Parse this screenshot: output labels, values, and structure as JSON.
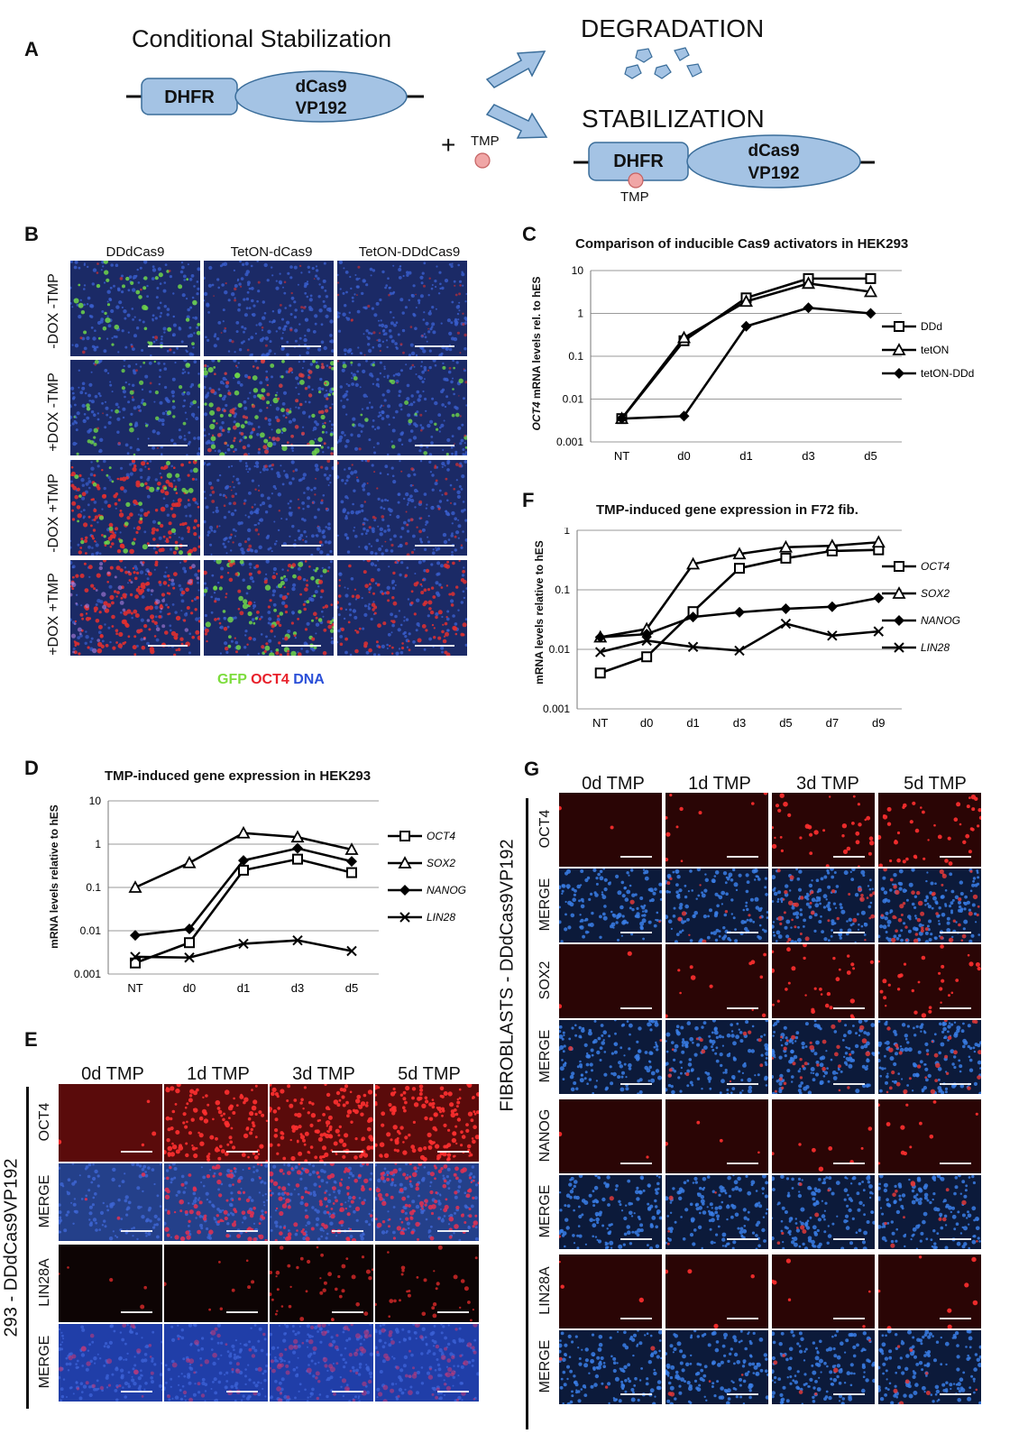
{
  "panelA": {
    "label": "A",
    "title": "Conditional Stabilization",
    "dhfr": "DHFR",
    "dcas9": "dCas9",
    "vp192": "VP192",
    "plus": "+",
    "tmp": "TMP",
    "degradation": "DEGRADATION",
    "stabilization": "STABILIZATION",
    "tmp_bound": "TMP"
  },
  "panelB": {
    "label": "B",
    "columns": [
      "DDdCas9",
      "TetON-dCas9",
      "TetON-DDdCas9"
    ],
    "rows": [
      "-DOX -TMP",
      "+DOX -TMP",
      "-DOX +TMP",
      "+DOX +TMP"
    ],
    "legend": {
      "gfp": "GFP",
      "oct4": "OCT4",
      "dna": "DNA"
    },
    "colors": {
      "gfp": "#7cdc3c",
      "oct4": "#e8202a",
      "dna": "#2a4fd8"
    }
  },
  "panelC": {
    "label": "C",
    "chart_data": {
      "type": "line",
      "title": "Comparison of inducible Cas9 activators in HEK293",
      "ylabel": "OCT4 mRNA levels rel. to hES",
      "ylabel_italic_part": "OCT4",
      "ylabel_rest": " mRNA levels rel. to hES",
      "yscale": "log",
      "ylim": [
        0.001,
        10
      ],
      "yticks": [
        "10",
        "1",
        "0.1",
        "0.01",
        "0.001"
      ],
      "categories": [
        "NT",
        "d0",
        "d1",
        "d3",
        "d5"
      ],
      "legend_position": "right",
      "series": [
        {
          "name": "DDd",
          "marker": "square",
          "values": [
            0.0035,
            0.23,
            2.3,
            6.5,
            6.5
          ]
        },
        {
          "name": "tetON",
          "marker": "triangle",
          "values": [
            0.0035,
            0.27,
            1.9,
            5.0,
            3.2
          ]
        },
        {
          "name": "tetON-DDd",
          "marker": "diamond",
          "values": [
            0.0035,
            0.004,
            0.5,
            1.35,
            1.0
          ]
        }
      ]
    }
  },
  "panelD": {
    "label": "D",
    "chart_data": {
      "type": "line",
      "title": "TMP-induced gene expression in HEK293",
      "ylabel": "mRNA levels relative to hES",
      "yscale": "log",
      "ylim": [
        0.001,
        10
      ],
      "yticks": [
        "10",
        "1",
        "0.1",
        "0.01",
        "0.001"
      ],
      "categories": [
        "NT",
        "d0",
        "d1",
        "d3",
        "d5"
      ],
      "legend_position": "right",
      "series": [
        {
          "name": "OCT4",
          "marker": "square",
          "values": [
            0.0018,
            0.0053,
            0.25,
            0.45,
            0.22
          ]
        },
        {
          "name": "SOX2",
          "marker": "triangle",
          "values": [
            0.1,
            0.37,
            1.8,
            1.45,
            0.75
          ]
        },
        {
          "name": "NANOG",
          "marker": "diamond",
          "values": [
            0.0078,
            0.011,
            0.42,
            0.8,
            0.4
          ]
        },
        {
          "name": "LIN28",
          "marker": "cross",
          "values": [
            0.0025,
            0.0024,
            0.005,
            0.006,
            0.0034
          ]
        }
      ]
    }
  },
  "panelE": {
    "label": "E",
    "columns": [
      "0d TMP",
      "1d TMP",
      "3d TMP",
      "5d TMP"
    ],
    "rows": [
      "OCT4",
      "MERGE",
      "LIN28A",
      "MERGE"
    ],
    "side_label": "293 - DDdCas9VP192"
  },
  "panelF": {
    "label": "F",
    "chart_data": {
      "type": "line",
      "title": "TMP-induced gene expression in F72 fib.",
      "ylabel": "mRNA levels relative to hES",
      "yscale": "log",
      "ylim": [
        0.001,
        1
      ],
      "yticks": [
        "1",
        "0.1",
        "0.01",
        "0.001"
      ],
      "categories": [
        "NT",
        "d0",
        "d1",
        "d3",
        "d5",
        "d7",
        "d9"
      ],
      "legend_position": "right",
      "series": [
        {
          "name": "OCT4",
          "marker": "square",
          "values": [
            0.004,
            0.0075,
            0.043,
            0.23,
            0.34,
            0.45,
            0.47
          ]
        },
        {
          "name": "SOX2",
          "marker": "triangle",
          "values": [
            0.016,
            0.022,
            0.27,
            0.4,
            0.52,
            0.55,
            0.63
          ]
        },
        {
          "name": "NANOG",
          "marker": "diamond",
          "values": [
            0.016,
            0.018,
            0.035,
            0.042,
            0.048,
            0.052,
            0.073
          ]
        },
        {
          "name": "LIN28",
          "marker": "cross",
          "values": [
            0.009,
            0.014,
            0.011,
            0.0095,
            0.027,
            0.017,
            0.02
          ]
        }
      ]
    }
  },
  "panelG": {
    "label": "G",
    "columns": [
      "0d TMP",
      "1d TMP",
      "3d TMP",
      "5d TMP"
    ],
    "rows": [
      "OCT4",
      "MERGE",
      "SOX2",
      "MERGE",
      "NANOG",
      "MERGE",
      "LIN28A",
      "MERGE"
    ],
    "side_label": "FIBROBLASTS - DDdCas9VP192"
  }
}
